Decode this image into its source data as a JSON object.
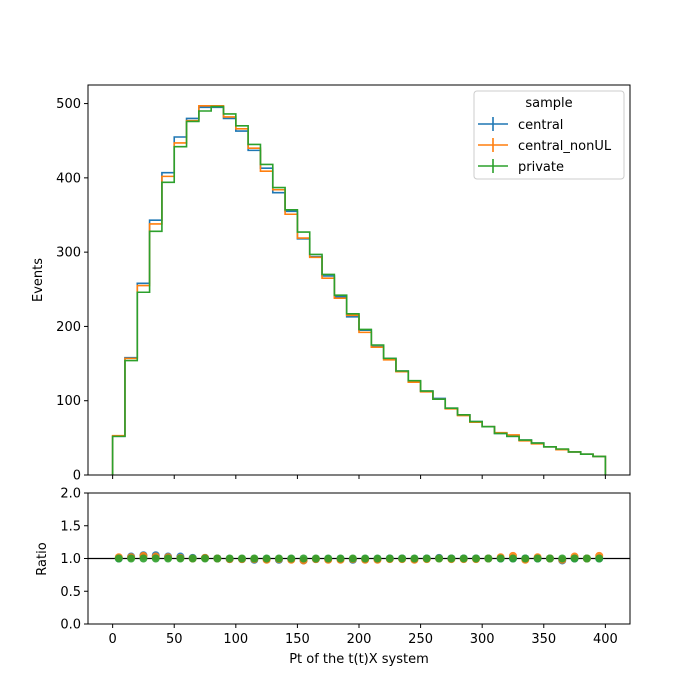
{
  "chart_data": [
    {
      "type": "step",
      "panel": "main",
      "xlabel": "",
      "ylabel": "Events",
      "xlim": [
        -20,
        420
      ],
      "ylim": [
        0,
        525
      ],
      "yticks": [
        0,
        100,
        200,
        300,
        400,
        500
      ],
      "xticks": [
        0,
        50,
        100,
        150,
        200,
        250,
        300,
        350,
        400
      ],
      "bin_edges": [
        0,
        10,
        20,
        30,
        40,
        50,
        60,
        70,
        80,
        90,
        100,
        110,
        120,
        130,
        140,
        150,
        160,
        170,
        180,
        190,
        200,
        210,
        220,
        230,
        240,
        250,
        260,
        270,
        280,
        290,
        300,
        310,
        320,
        330,
        340,
        350,
        360,
        370,
        380,
        390,
        400
      ],
      "legend": {
        "title": "sample",
        "position": "top-right"
      },
      "series": [
        {
          "name": "central",
          "color": "#1f77b4",
          "values": [
            52,
            158,
            258,
            343,
            407,
            455,
            480,
            495,
            495,
            480,
            463,
            437,
            413,
            380,
            355,
            318,
            294,
            268,
            240,
            213,
            195,
            173,
            157,
            140,
            126,
            113,
            103,
            90,
            81,
            72,
            65,
            56,
            52,
            47,
            43,
            38,
            34,
            31,
            28,
            25
          ]
        },
        {
          "name": "central_nonUL",
          "color": "#ff7f0e",
          "values": [
            53,
            157,
            255,
            338,
            402,
            447,
            477,
            497,
            497,
            482,
            466,
            440,
            409,
            384,
            351,
            319,
            293,
            265,
            238,
            215,
            192,
            172,
            155,
            139,
            125,
            112,
            102,
            89,
            80,
            71,
            65,
            57,
            54,
            46,
            42,
            38,
            34,
            31,
            28,
            25
          ]
        },
        {
          "name": "private",
          "color": "#2ca02c",
          "values": [
            52,
            154,
            246,
            328,
            394,
            442,
            476,
            490,
            496,
            486,
            470,
            445,
            418,
            387,
            357,
            327,
            297,
            270,
            242,
            217,
            196,
            175,
            157,
            140,
            127,
            113,
            102,
            90,
            81,
            72,
            65,
            56,
            52,
            47,
            43,
            38,
            35,
            31,
            28,
            25
          ]
        }
      ]
    },
    {
      "type": "scatter",
      "panel": "ratio",
      "xlabel": "Pt of the t(t)X system",
      "ylabel": "Ratio",
      "xlim": [
        -20,
        420
      ],
      "ylim": [
        0.0,
        2.0
      ],
      "yticks": [
        "0.0",
        "0.5",
        "1.0",
        "1.5",
        "2.0"
      ],
      "xticks": [
        0,
        50,
        100,
        150,
        200,
        250,
        300,
        350,
        400
      ],
      "reference_line": 1.0,
      "x": [
        5,
        15,
        25,
        35,
        45,
        55,
        65,
        75,
        85,
        95,
        105,
        115,
        125,
        135,
        145,
        155,
        165,
        175,
        185,
        195,
        205,
        215,
        225,
        235,
        245,
        255,
        265,
        275,
        285,
        295,
        305,
        315,
        325,
        335,
        345,
        355,
        365,
        375,
        385,
        395
      ],
      "series": [
        {
          "name": "central",
          "color": "#1f77b4",
          "values": [
            1.0,
            1.03,
            1.05,
            1.05,
            1.03,
            1.03,
            1.01,
            1.01,
            1.0,
            0.99,
            0.99,
            0.98,
            0.99,
            0.98,
            0.99,
            0.97,
            0.99,
            0.99,
            0.99,
            0.98,
            0.99,
            0.99,
            1.0,
            1.0,
            0.99,
            1.0,
            1.01,
            1.0,
            1.0,
            1.0,
            1.0,
            1.0,
            1.0,
            1.0,
            1.0,
            1.0,
            0.97,
            1.0,
            1.0,
            1.0
          ]
        },
        {
          "name": "central_nonUL",
          "color": "#ff7f0e",
          "values": [
            1.02,
            1.02,
            1.04,
            1.03,
            1.02,
            1.01,
            1.0,
            1.01,
            1.0,
            0.99,
            0.99,
            0.99,
            0.98,
            0.99,
            0.98,
            0.97,
            0.99,
            0.98,
            0.98,
            0.99,
            0.98,
            0.98,
            0.99,
            0.99,
            0.98,
            0.99,
            1.0,
            0.99,
            0.99,
            0.99,
            1.0,
            1.02,
            1.04,
            0.98,
            1.02,
            1.0,
            0.98,
            1.03,
            1.0,
            1.04
          ]
        },
        {
          "name": "private",
          "color": "#2ca02c",
          "values": [
            1.0,
            1.0,
            1.0,
            1.0,
            1.0,
            1.0,
            1.0,
            1.0,
            1.0,
            1.0,
            1.0,
            1.0,
            1.0,
            1.0,
            1.0,
            1.0,
            1.0,
            1.0,
            1.0,
            1.0,
            1.0,
            1.0,
            1.0,
            1.0,
            1.0,
            1.0,
            1.0,
            1.0,
            1.0,
            1.0,
            1.0,
            1.0,
            1.0,
            1.0,
            1.0,
            1.0,
            1.0,
            1.0,
            1.0,
            1.0
          ]
        }
      ]
    }
  ]
}
